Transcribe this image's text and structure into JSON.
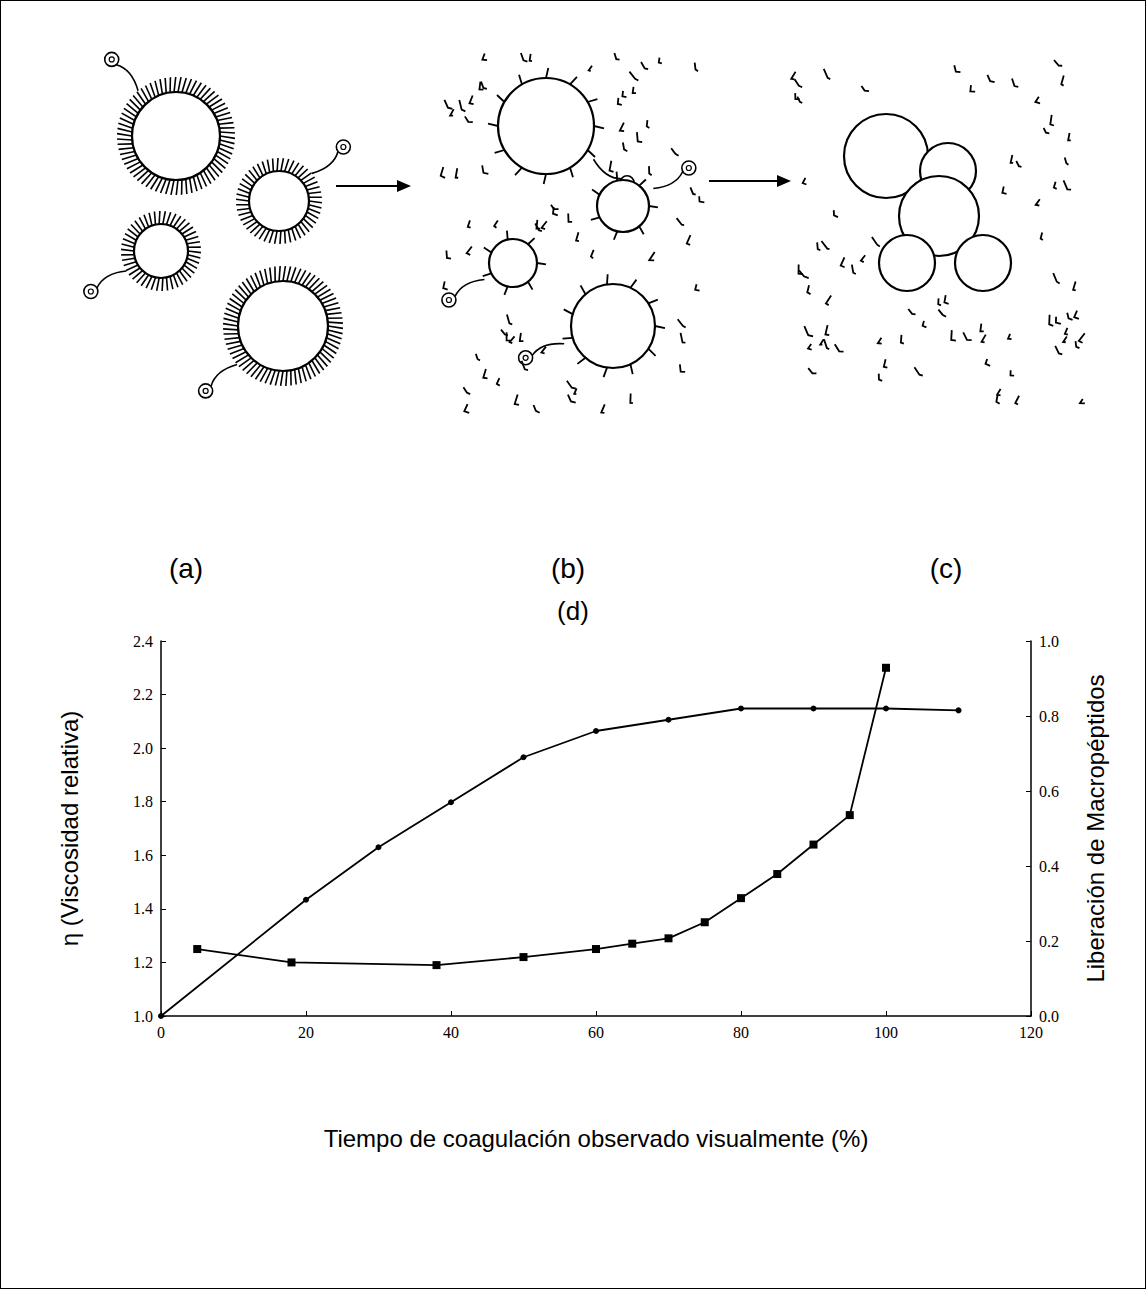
{
  "diagram": {
    "panels": [
      {
        "label": "(a)"
      },
      {
        "label": "(b)"
      },
      {
        "label": "(c)"
      }
    ]
  },
  "chart_data": {
    "type": "line",
    "title": "(d)",
    "xlabel": "Tiempo de coagulación observado visualmente (%)",
    "ylabel": "η (Viscosidad relativa)",
    "y2label": "Liberación de Macropéptidos",
    "xlim": [
      0,
      120
    ],
    "xticks": [
      0,
      20,
      40,
      60,
      80,
      100,
      120
    ],
    "ylim": [
      1.0,
      2.4
    ],
    "yticks": [
      {
        "value": 1.0,
        "label": "1.0"
      },
      1.2,
      1.4,
      1.6,
      1.8,
      {
        "value": 2.0,
        "label": "2.0"
      },
      2.2,
      2.4
    ],
    "y2lim": [
      0.0,
      1.0
    ],
    "y2ticks": [
      {
        "value": 0.0,
        "label": "0.0"
      },
      0.2,
      0.4,
      0.6,
      0.8,
      {
        "value": 1.0,
        "label": "1.0"
      }
    ],
    "grid": false,
    "series": [
      {
        "axis": "y",
        "color": "#000000",
        "marker": "square",
        "line_style": "solid",
        "x": [
          5,
          18,
          38,
          50,
          60,
          65,
          70,
          75,
          80,
          85,
          90,
          95,
          100
        ],
        "values": [
          1.25,
          1.2,
          1.19,
          1.22,
          1.25,
          1.27,
          1.29,
          1.35,
          1.44,
          1.53,
          1.64,
          1.75,
          2.3
        ]
      },
      {
        "axis": "y2",
        "color": "#000000",
        "marker": "circle",
        "line_style": "solid",
        "x": [
          0,
          20,
          30,
          40,
          50,
          60,
          70,
          80,
          90,
          100,
          110
        ],
        "values": [
          0.0,
          0.31,
          0.45,
          0.57,
          0.69,
          0.76,
          0.79,
          0.82,
          0.82,
          0.82,
          0.815
        ]
      }
    ]
  }
}
